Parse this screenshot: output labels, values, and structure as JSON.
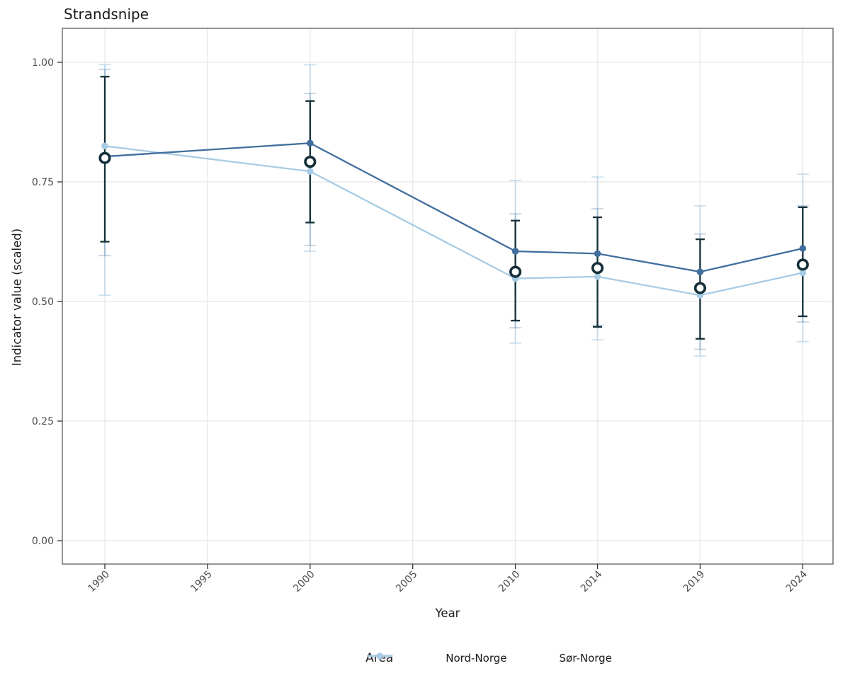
{
  "chart_data": {
    "type": "line",
    "title": "Strandsnipe",
    "xlabel": "Year",
    "ylabel": "Indicator value (scaled)",
    "legend_title": "Area",
    "legend_position": "bottom",
    "grid": true,
    "ylim": [
      -0.05,
      1.06
    ],
    "x_ticks": [
      {
        "label": "1990",
        "year": 1990
      },
      {
        "label": "1995",
        "year": 1995
      },
      {
        "label": "2000",
        "year": 2000
      },
      {
        "label": "2005",
        "year": 2005
      },
      {
        "label": "2010",
        "year": 2010
      },
      {
        "label": "2014",
        "year": 2014
      },
      {
        "label": "2019",
        "year": 2019
      },
      {
        "label": "2024",
        "year": 2024
      }
    ],
    "y_ticks": [
      {
        "label": "1.00",
        "value": 1.0
      },
      {
        "label": "0.75",
        "value": 0.75
      },
      {
        "label": "0.50",
        "value": 0.5
      },
      {
        "label": "0.25",
        "value": 0.25
      },
      {
        "label": "0.00",
        "value": 0.0
      }
    ],
    "years": [
      1990,
      2000,
      2010,
      2014,
      2019,
      2024
    ],
    "series": [
      {
        "name": "Nord-Norge",
        "color": "#406e9d",
        "ci_color": "rgba(64,110,157,0.28)",
        "values": [
          0.803,
          0.831,
          0.605,
          0.6,
          0.562,
          0.611
        ],
        "ci_low": [
          0.596,
          0.617,
          0.445,
          0.45,
          0.4,
          0.457
        ],
        "ci_high": [
          0.985,
          0.935,
          0.683,
          0.694,
          0.641,
          0.7
        ]
      },
      {
        "name": "Sør-Norge",
        "color": "#a7cce5",
        "ci_color": "rgba(167,204,229,0.55)",
        "values": [
          0.825,
          0.772,
          0.548,
          0.552,
          0.513,
          0.56
        ],
        "ci_low": [
          0.513,
          0.605,
          0.413,
          0.42,
          0.386,
          0.416
        ],
        "ci_high": [
          0.995,
          0.995,
          0.753,
          0.76,
          0.7,
          0.766
        ]
      }
    ],
    "open_markers": {
      "color": "#152f38",
      "values": [
        0.8,
        0.792,
        0.562,
        0.57,
        0.528,
        0.577
      ],
      "err_low": [
        0.625,
        0.665,
        0.46,
        0.447,
        0.422,
        0.469
      ],
      "err_high": [
        0.97,
        0.919,
        0.669,
        0.676,
        0.63,
        0.697
      ]
    },
    "style": {
      "background": "#ffffff",
      "grid_color": "#ebebeb",
      "border_color": "#4d4d4d",
      "tick_color": "#333333",
      "tick_label_color": "#4d4d4d",
      "text_color": "#1a1a1a"
    }
  }
}
